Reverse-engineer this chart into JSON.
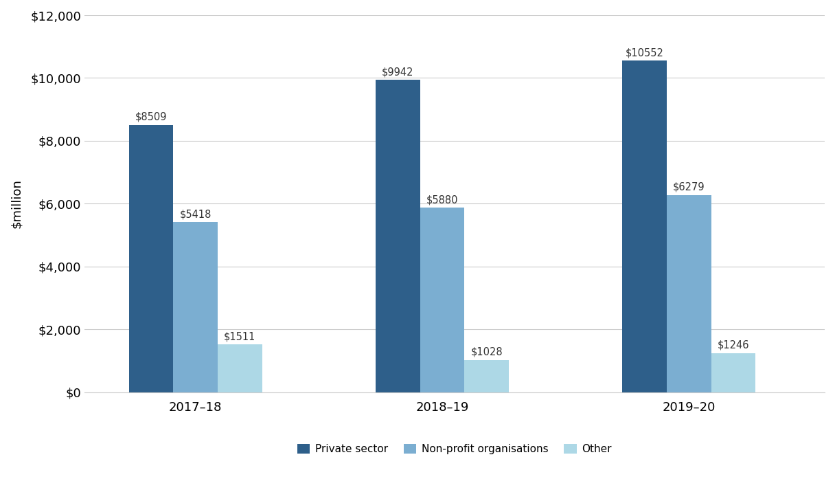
{
  "categories": [
    "2017–18",
    "2018–19",
    "2019–20"
  ],
  "series": [
    {
      "name": "Private sector",
      "values": [
        8509,
        9942,
        10552
      ],
      "color": "#2E5F8A"
    },
    {
      "name": "Non-profit organisations",
      "values": [
        5418,
        5880,
        6279
      ],
      "color": "#7BAED1"
    },
    {
      "name": "Other",
      "values": [
        1511,
        1028,
        1246
      ],
      "color": "#ADD8E6"
    }
  ],
  "ylabel": "$million",
  "ylim": [
    0,
    12000
  ],
  "yticks": [
    0,
    2000,
    4000,
    6000,
    8000,
    10000,
    12000
  ],
  "background_color": "#ffffff",
  "grid_color": "#cccccc",
  "bar_width": 0.18,
  "label_fontsize": 10.5,
  "axis_fontsize": 13,
  "legend_fontsize": 11,
  "group_centers": [
    0.0,
    1.0,
    2.0
  ],
  "xlim": [
    -0.45,
    2.55
  ]
}
